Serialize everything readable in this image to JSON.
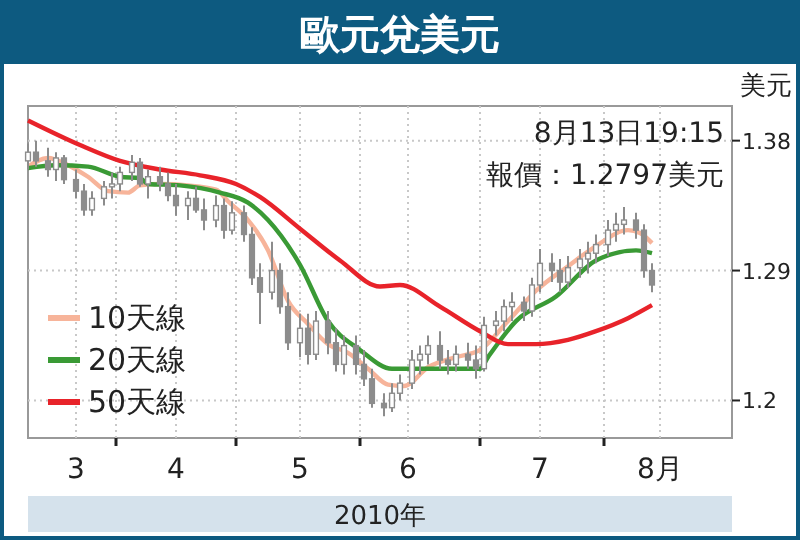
{
  "chart_data": {
    "type": "candlestick",
    "title": "歐元兌美元",
    "xlabel": "2010年",
    "ylabel": "美元",
    "annotations": [
      "8月13日19:15",
      "報價：1.2797美元"
    ],
    "color": "#8c8c8c",
    "grid": true,
    "legend": "bottom left",
    "xlim": [
      "2010-03-10",
      "2010-09-02"
    ],
    "xticks": [
      {
        "value": "2010-03-22",
        "label": "3"
      },
      {
        "value": "2010-04-01",
        "label": null
      },
      {
        "value": "2010-04-16",
        "label": "4"
      },
      {
        "value": "2010-05-01",
        "label": null
      },
      {
        "value": "2010-05-17",
        "label": "5"
      },
      {
        "value": "2010-06-01",
        "label": null
      },
      {
        "value": "2010-06-13",
        "label": "6"
      },
      {
        "value": "2010-07-01",
        "label": null
      },
      {
        "value": "2010-07-16",
        "label": "7"
      },
      {
        "value": "2010-08-01",
        "label": null
      },
      {
        "value": "2010-08-15",
        "label": "8月"
      }
    ],
    "ylim": [
      1.174,
      1.404
    ],
    "yticks": [
      1.2,
      1.29,
      1.38
    ],
    "x": [
      "2010-03-10",
      "2010-03-12",
      "2010-03-15",
      "2010-03-17",
      "2010-03-19",
      "2010-03-22",
      "2010-03-24",
      "2010-03-26",
      "2010-03-29",
      "2010-03-31",
      "2010-04-02",
      "2010-04-05",
      "2010-04-07",
      "2010-04-09",
      "2010-04-12",
      "2010-04-14",
      "2010-04-16",
      "2010-04-19",
      "2010-04-21",
      "2010-04-23",
      "2010-04-26",
      "2010-04-28",
      "2010-04-30",
      "2010-05-03",
      "2010-05-05",
      "2010-05-07",
      "2010-05-10",
      "2010-05-12",
      "2010-05-14",
      "2010-05-17",
      "2010-05-19",
      "2010-05-21",
      "2010-05-24",
      "2010-05-26",
      "2010-05-28",
      "2010-05-31",
      "2010-06-02",
      "2010-06-04",
      "2010-06-07",
      "2010-06-09",
      "2010-06-11",
      "2010-06-14",
      "2010-06-16",
      "2010-06-18",
      "2010-06-21",
      "2010-06-23",
      "2010-06-25",
      "2010-06-28",
      "2010-06-30",
      "2010-07-02",
      "2010-07-05",
      "2010-07-07",
      "2010-07-09",
      "2010-07-12",
      "2010-07-14",
      "2010-07-16",
      "2010-07-19",
      "2010-07-21",
      "2010-07-23",
      "2010-07-26",
      "2010-07-28",
      "2010-07-30",
      "2010-08-02",
      "2010-08-04",
      "2010-08-06",
      "2010-08-09",
      "2010-08-11",
      "2010-08-13"
    ],
    "ohlc": [
      [
        1.366,
        1.378,
        1.36,
        1.372
      ],
      [
        1.372,
        1.38,
        1.362,
        1.366
      ],
      [
        1.366,
        1.375,
        1.355,
        1.36
      ],
      [
        1.36,
        1.372,
        1.352,
        1.368
      ],
      [
        1.368,
        1.37,
        1.35,
        1.353
      ],
      [
        1.353,
        1.36,
        1.34,
        1.345
      ],
      [
        1.345,
        1.35,
        1.328,
        1.332
      ],
      [
        1.332,
        1.345,
        1.328,
        1.34
      ],
      [
        1.34,
        1.352,
        1.335,
        1.348
      ],
      [
        1.348,
        1.358,
        1.34,
        1.35
      ],
      [
        1.35,
        1.362,
        1.345,
        1.358
      ],
      [
        1.358,
        1.37,
        1.352,
        1.365
      ],
      [
        1.365,
        1.368,
        1.348,
        1.35
      ],
      [
        1.35,
        1.36,
        1.34,
        1.355
      ],
      [
        1.355,
        1.362,
        1.345,
        1.35
      ],
      [
        1.35,
        1.358,
        1.338,
        1.342
      ],
      [
        1.342,
        1.35,
        1.328,
        1.335
      ],
      [
        1.335,
        1.345,
        1.325,
        1.34
      ],
      [
        1.34,
        1.348,
        1.33,
        1.332
      ],
      [
        1.332,
        1.34,
        1.318,
        1.325
      ],
      [
        1.325,
        1.342,
        1.32,
        1.335
      ],
      [
        1.335,
        1.34,
        1.312,
        1.318
      ],
      [
        1.318,
        1.338,
        1.315,
        1.33
      ],
      [
        1.33,
        1.335,
        1.31,
        1.315
      ],
      [
        1.315,
        1.32,
        1.28,
        1.285
      ],
      [
        1.285,
        1.295,
        1.253,
        1.275
      ],
      [
        1.275,
        1.31,
        1.27,
        1.29
      ],
      [
        1.29,
        1.295,
        1.26,
        1.265
      ],
      [
        1.265,
        1.275,
        1.235,
        1.24
      ],
      [
        1.24,
        1.26,
        1.23,
        1.25
      ],
      [
        1.25,
        1.26,
        1.225,
        1.232
      ],
      [
        1.232,
        1.262,
        1.228,
        1.255
      ],
      [
        1.255,
        1.262,
        1.232,
        1.24
      ],
      [
        1.24,
        1.25,
        1.22,
        1.225
      ],
      [
        1.225,
        1.245,
        1.218,
        1.238
      ],
      [
        1.238,
        1.245,
        1.218,
        1.225
      ],
      [
        1.225,
        1.235,
        1.21,
        1.215
      ],
      [
        1.215,
        1.222,
        1.195,
        1.198
      ],
      [
        1.198,
        1.205,
        1.189,
        1.195
      ],
      [
        1.195,
        1.212,
        1.192,
        1.205
      ],
      [
        1.205,
        1.218,
        1.2,
        1.212
      ],
      [
        1.212,
        1.235,
        1.208,
        1.228
      ],
      [
        1.228,
        1.238,
        1.218,
        1.232
      ],
      [
        1.232,
        1.245,
        1.225,
        1.238
      ],
      [
        1.238,
        1.248,
        1.222,
        1.228
      ],
      [
        1.228,
        1.235,
        1.218,
        1.225
      ],
      [
        1.225,
        1.238,
        1.22,
        1.232
      ],
      [
        1.232,
        1.24,
        1.222,
        1.228
      ],
      [
        1.228,
        1.238,
        1.215,
        1.222
      ],
      [
        1.222,
        1.258,
        1.22,
        1.252
      ],
      [
        1.252,
        1.262,
        1.245,
        1.255
      ],
      [
        1.255,
        1.27,
        1.248,
        1.265
      ],
      [
        1.265,
        1.275,
        1.255,
        1.268
      ],
      [
        1.268,
        1.272,
        1.255,
        1.262
      ],
      [
        1.262,
        1.285,
        1.258,
        1.28
      ],
      [
        1.28,
        1.305,
        1.275,
        1.295
      ],
      [
        1.295,
        1.302,
        1.282,
        1.29
      ],
      [
        1.29,
        1.298,
        1.275,
        1.282
      ],
      [
        1.282,
        1.3,
        1.278,
        1.292
      ],
      [
        1.292,
        1.305,
        1.285,
        1.298
      ],
      [
        1.298,
        1.31,
        1.288,
        1.302
      ],
      [
        1.302,
        1.315,
        1.295,
        1.308
      ],
      [
        1.308,
        1.325,
        1.3,
        1.318
      ],
      [
        1.318,
        1.33,
        1.31,
        1.322
      ],
      [
        1.322,
        1.334,
        1.315,
        1.325
      ],
      [
        1.325,
        1.33,
        1.312,
        1.318
      ],
      [
        1.318,
        1.322,
        1.285,
        1.29
      ],
      [
        1.29,
        1.295,
        1.275,
        1.28
      ]
    ],
    "series": [
      {
        "type": "line",
        "name": "10天線",
        "color": "#f7b49a",
        "x": [
          "2010-03-10",
          "2010-03-15",
          "2010-03-20",
          "2010-03-25",
          "2010-03-30",
          "2010-04-04",
          "2010-04-07",
          "2010-04-12",
          "2010-04-19",
          "2010-04-26",
          "2010-04-29",
          "2010-05-04",
          "2010-05-09",
          "2010-05-14",
          "2010-05-19",
          "2010-05-24",
          "2010-05-29",
          "2010-06-03",
          "2010-06-08",
          "2010-06-12",
          "2010-06-18",
          "2010-06-25",
          "2010-07-01",
          "2010-07-08",
          "2010-07-15",
          "2010-07-23",
          "2010-07-30",
          "2010-08-07",
          "2010-08-10",
          "2010-08-13"
        ],
        "values": [
          1.362,
          1.368,
          1.363,
          1.355,
          1.345,
          1.344,
          1.349,
          1.35,
          1.349,
          1.346,
          1.338,
          1.325,
          1.304,
          1.269,
          1.253,
          1.239,
          1.233,
          1.222,
          1.211,
          1.21,
          1.223,
          1.23,
          1.235,
          1.255,
          1.276,
          1.293,
          1.307,
          1.318,
          1.316,
          1.309
        ]
      },
      {
        "type": "line",
        "name": "20天線",
        "color": "#3a9a35",
        "x": [
          "2010-03-10",
          "2010-03-17",
          "2010-03-25",
          "2010-04-02",
          "2010-04-07",
          "2010-04-09",
          "2010-04-17",
          "2010-04-27",
          "2010-05-04",
          "2010-05-09",
          "2010-05-17",
          "2010-05-24",
          "2010-06-01",
          "2010-06-09",
          "2010-06-11",
          "2010-07-01",
          "2010-07-03",
          "2010-07-10",
          "2010-07-20",
          "2010-07-30",
          "2010-08-09",
          "2010-08-13"
        ],
        "values": [
          1.361,
          1.363,
          1.362,
          1.355,
          1.354,
          1.35,
          1.349,
          1.344,
          1.337,
          1.325,
          1.294,
          1.255,
          1.235,
          1.222,
          1.222,
          1.222,
          1.23,
          1.255,
          1.272,
          1.297,
          1.304,
          1.302
        ]
      },
      {
        "type": "line",
        "name": "50天線",
        "color": "#e8232a",
        "x": [
          "2010-03-10",
          "2010-03-23",
          "2010-04-02",
          "2010-04-12",
          "2010-04-22",
          "2010-05-01",
          "2010-05-07",
          "2010-05-17",
          "2010-05-27",
          "2010-06-06",
          "2010-06-11",
          "2010-06-21",
          "2010-07-01",
          "2010-07-08",
          "2010-07-15",
          "2010-07-23",
          "2010-07-30",
          "2010-08-07",
          "2010-08-13"
        ],
        "values": [
          1.394,
          1.377,
          1.366,
          1.36,
          1.356,
          1.35,
          1.341,
          1.319,
          1.297,
          1.279,
          1.28,
          1.265,
          1.248,
          1.239,
          1.239,
          1.242,
          1.248,
          1.257,
          1.266
        ]
      }
    ]
  }
}
